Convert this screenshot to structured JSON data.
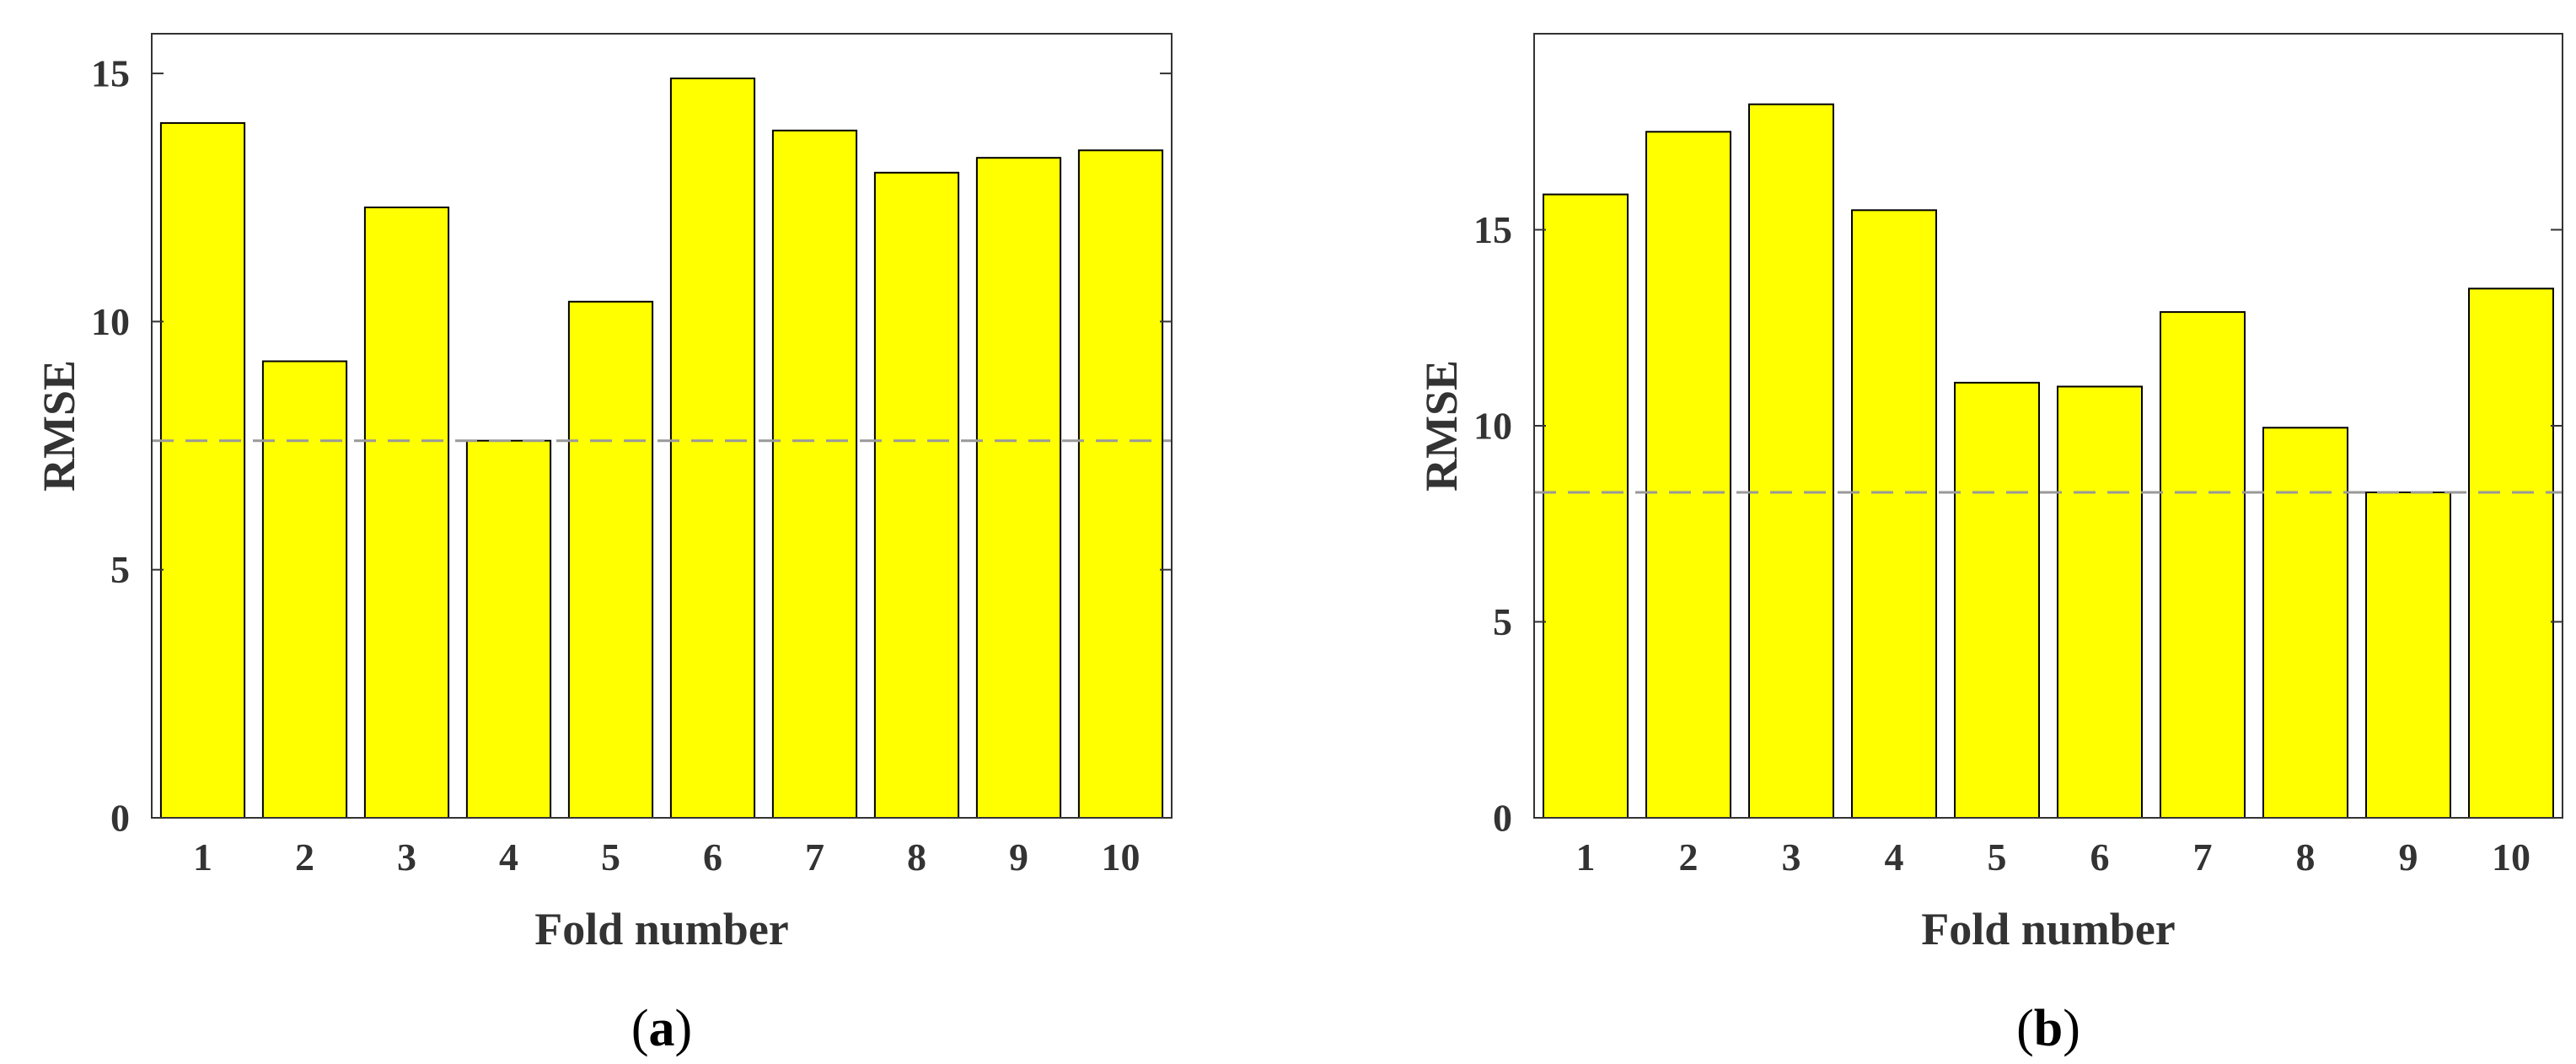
{
  "chart_data": [
    {
      "type": "bar",
      "panel_label": "a",
      "categories": [
        "1",
        "2",
        "3",
        "4",
        "5",
        "6",
        "7",
        "8",
        "9",
        "10"
      ],
      "values": [
        14.0,
        9.2,
        12.3,
        7.6,
        10.4,
        14.9,
        13.85,
        13.0,
        13.3,
        13.45
      ],
      "reference_line": {
        "value": 7.6,
        "style": "dashed",
        "color": "#999999"
      },
      "xlabel": "Fold number",
      "ylabel": "RMSE",
      "ylim": [
        0,
        15.8
      ],
      "yticks": [
        0,
        5,
        10,
        15
      ],
      "bar_color": "#ffff00",
      "grid": false
    },
    {
      "type": "bar",
      "panel_label": "b",
      "categories": [
        "1",
        "2",
        "3",
        "4",
        "5",
        "6",
        "7",
        "8",
        "9",
        "10"
      ],
      "values": [
        15.9,
        17.5,
        18.2,
        15.5,
        11.1,
        11.0,
        12.9,
        9.95,
        8.3,
        13.5
      ],
      "reference_line": {
        "value": 8.3,
        "style": "dashed",
        "color": "#999999"
      },
      "xlabel": "Fold number",
      "ylabel": "RMSE",
      "ylim": [
        0,
        20
      ],
      "yticks": [
        0,
        5,
        10,
        15
      ],
      "bar_color": "#ffff00",
      "grid": false
    }
  ]
}
